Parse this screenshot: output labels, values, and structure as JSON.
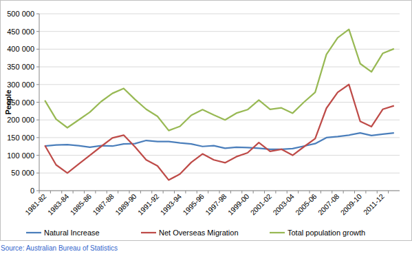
{
  "chart_data": {
    "type": "line",
    "y_label": "People",
    "categories": [
      "1981-82",
      null,
      "1983-84",
      null,
      "1985-86",
      null,
      "1987-88",
      null,
      "1989-90",
      null,
      "1991-92",
      null,
      "1993-94",
      null,
      "1995-96",
      null,
      "1997-98",
      null,
      "1999-00",
      null,
      "2001-02",
      null,
      "2003-04",
      null,
      "2005-06",
      null,
      "2007-08",
      null,
      "2009-10",
      null,
      "2011-12",
      null
    ],
    "series": [
      {
        "name": "Natural Increase",
        "color": "#4a7ebb",
        "values": [
          126000,
          129000,
          130000,
          127000,
          123000,
          127000,
          126000,
          132000,
          133000,
          142000,
          139000,
          139000,
          135000,
          132000,
          125000,
          127000,
          120000,
          123000,
          122000,
          120000,
          117000,
          117000,
          119000,
          126000,
          133000,
          150000,
          153000,
          157000,
          163000,
          156000,
          160000,
          163000
        ]
      },
      {
        "name": "Net Overseas Migration",
        "color": "#be4b48",
        "values": [
          128000,
          73000,
          50000,
          75000,
          100000,
          125000,
          149000,
          157000,
          124000,
          87000,
          70000,
          30000,
          47000,
          80000,
          104000,
          87000,
          79000,
          96000,
          107000,
          136000,
          111000,
          117000,
          100000,
          124000,
          147000,
          233000,
          278000,
          300000,
          196000,
          181000,
          230000,
          240000
        ]
      },
      {
        "name": "Total population growth",
        "color": "#98b954",
        "values": [
          255000,
          202000,
          178000,
          200000,
          222000,
          252000,
          275000,
          289000,
          258000,
          230000,
          210000,
          170000,
          182000,
          213000,
          229000,
          214000,
          200000,
          219000,
          229000,
          256000,
          230000,
          234000,
          219000,
          250000,
          278000,
          385000,
          432000,
          456000,
          359000,
          336000,
          388000,
          401000
        ]
      }
    ],
    "ylim": [
      0,
      500000
    ],
    "yticks": [
      0,
      {
        "value": 50000,
        "label": "50 000"
      },
      {
        "value": 100000,
        "label": "100 000"
      },
      {
        "value": 150000,
        "label": "150 000"
      },
      {
        "value": 200000,
        "label": "200 000"
      },
      {
        "value": 250000,
        "label": "250 000"
      },
      {
        "value": 300000,
        "label": "300 000"
      },
      {
        "value": 350000,
        "label": "350 000"
      },
      {
        "value": 400000,
        "label": "400 000"
      },
      {
        "value": 450000,
        "label": "450 000"
      },
      {
        "value": 500000,
        "label": "500 000"
      }
    ],
    "grid": true,
    "legend": "bottom"
  },
  "footer": {
    "source": "Source: Australian Bureau of Statistics"
  }
}
